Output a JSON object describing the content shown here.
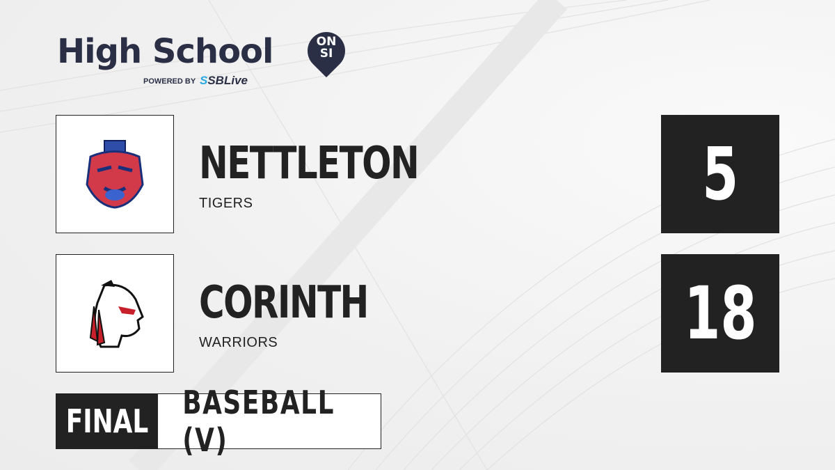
{
  "brand": {
    "title": "High School",
    "badge_top": "ON",
    "badge_bottom": "SI",
    "powered_by": "POWERED BY",
    "partner_prefix": "S",
    "partner": "SBLive"
  },
  "teams": [
    {
      "name": "NETTLETON",
      "mascot": "TIGERS",
      "score": "5",
      "logo_icon": "tiger-logo-icon"
    },
    {
      "name": "CORINTH",
      "mascot": "WARRIORS",
      "score": "18",
      "logo_icon": "warrior-logo-icon"
    }
  ],
  "game": {
    "status": "FINAL",
    "sport": "BASEBALL (V)"
  },
  "colors": {
    "brand": "#2b2f45",
    "accent": "#2aa8e0",
    "dark": "#222222"
  }
}
